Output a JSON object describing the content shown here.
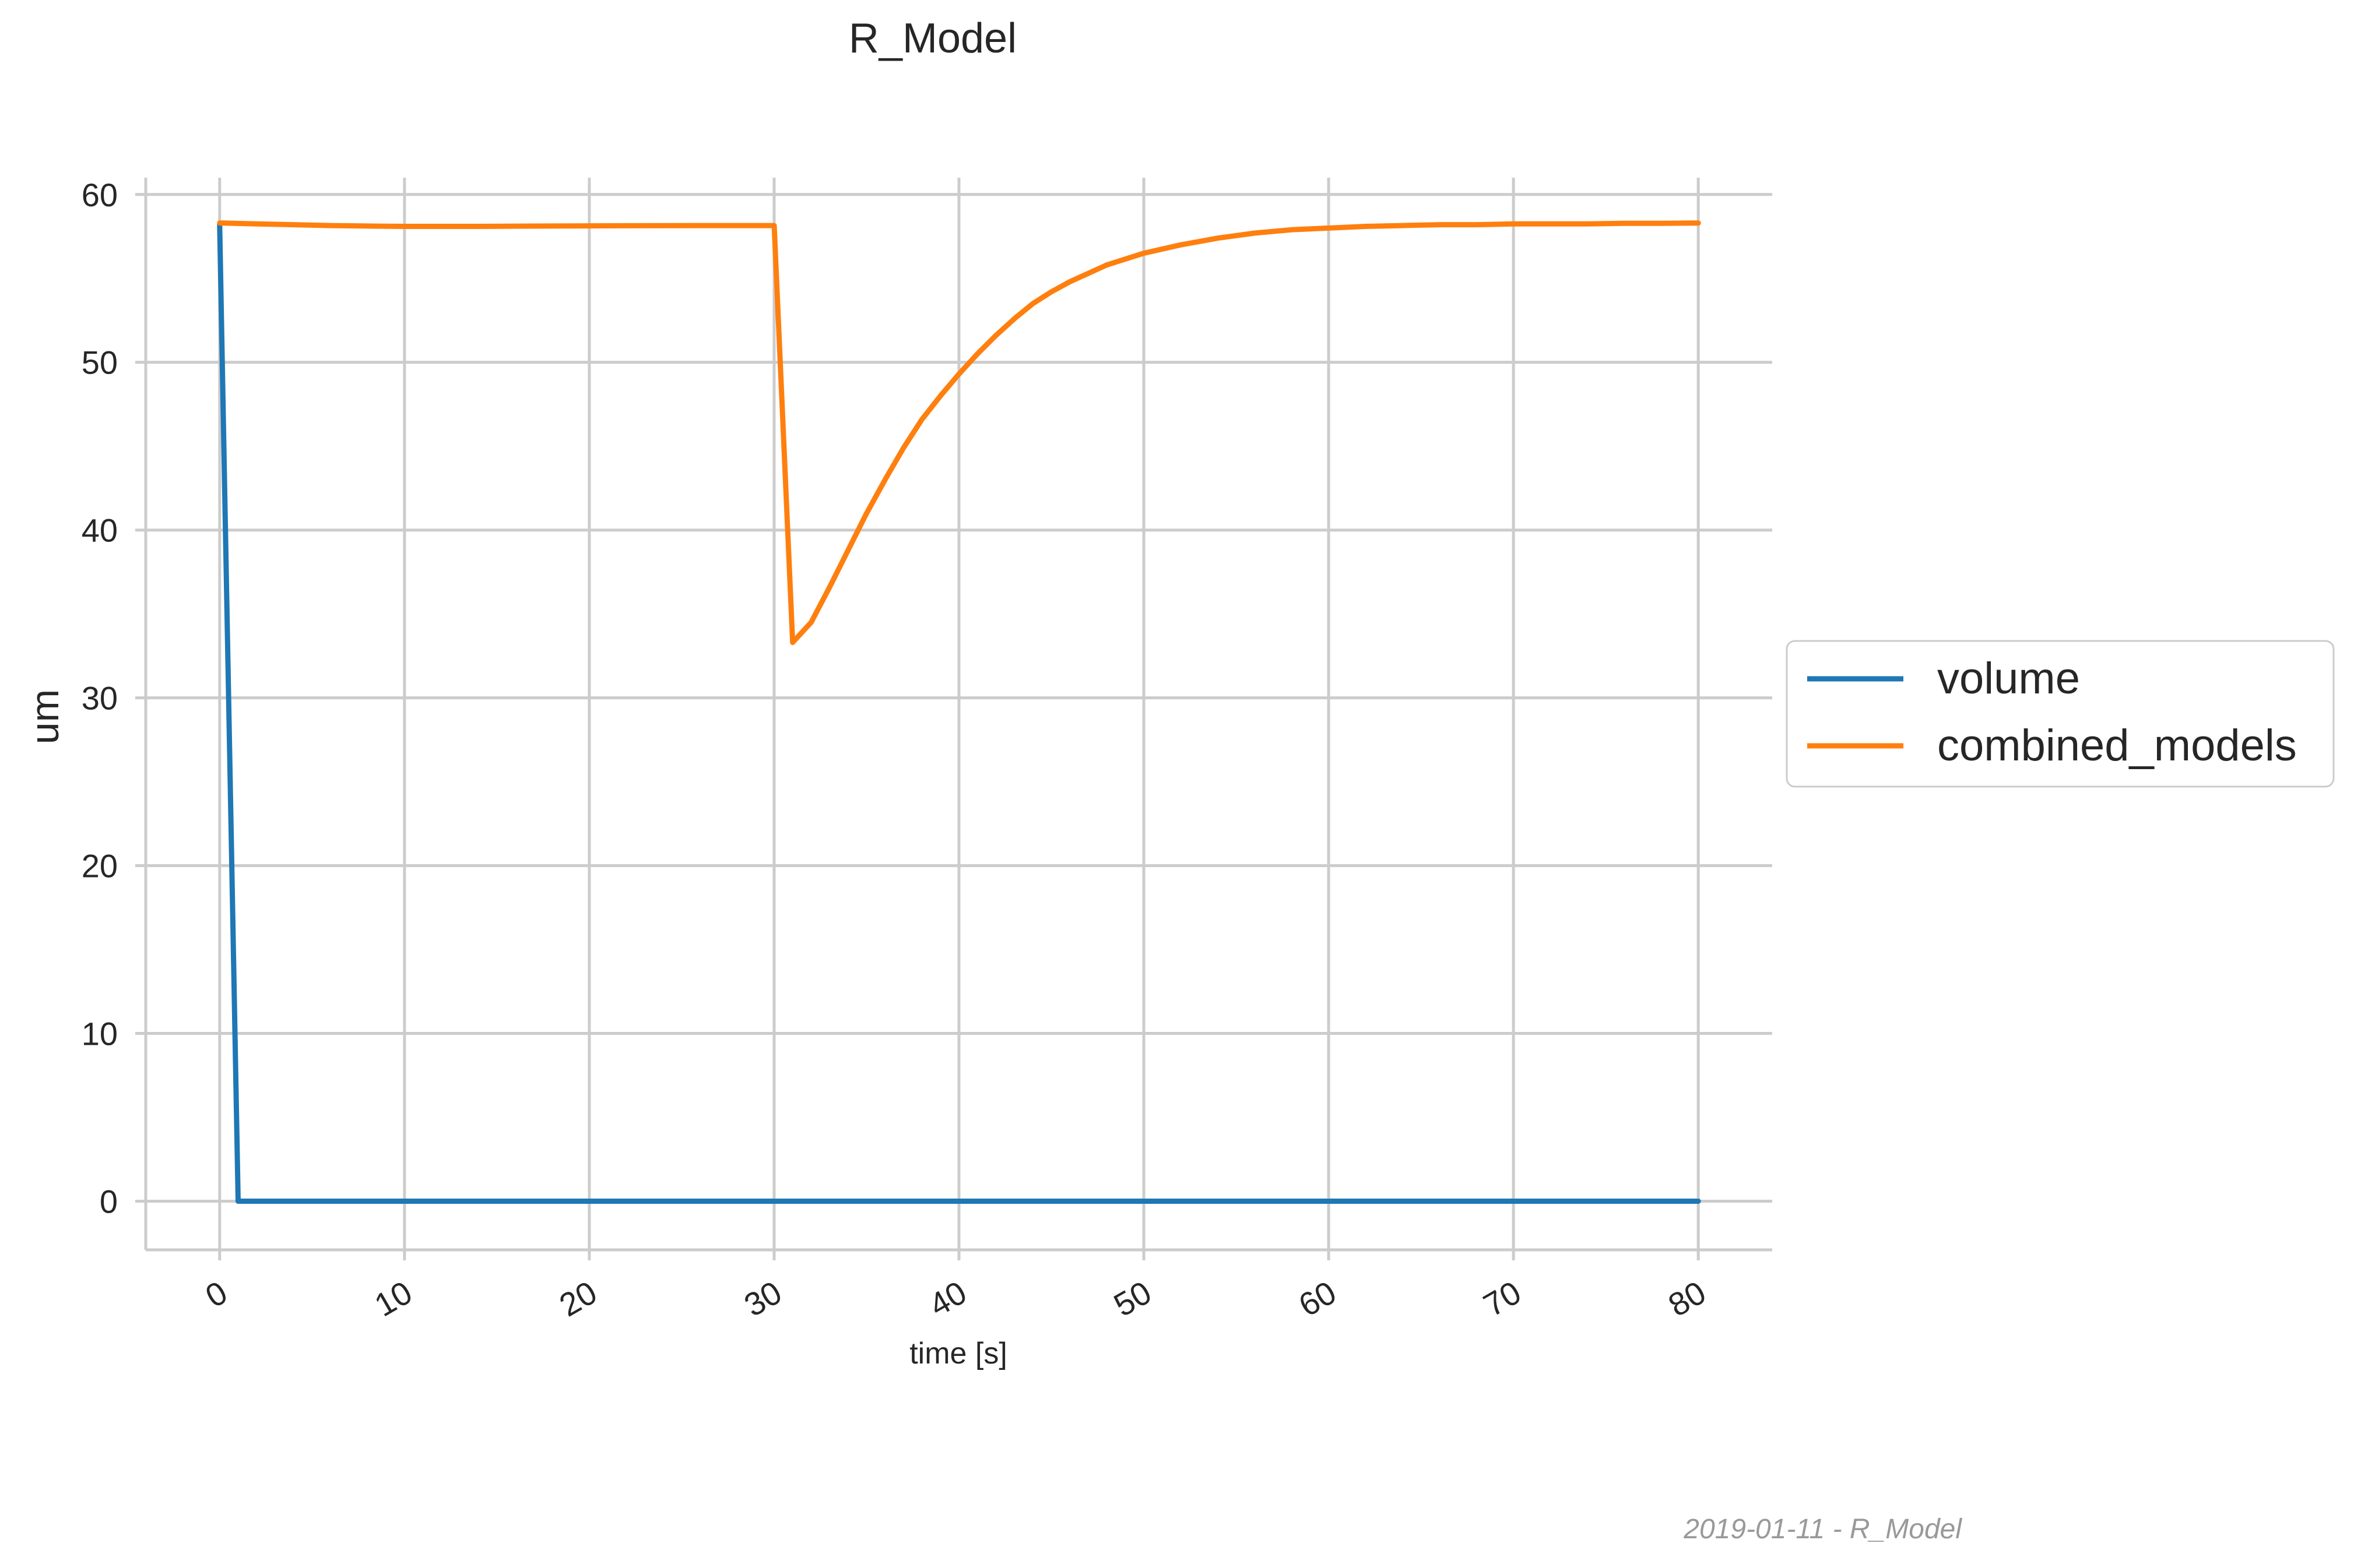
{
  "chart_data": {
    "type": "line",
    "title": "R_Model",
    "xlabel": "time [s]",
    "ylabel": "um",
    "xlim": [
      -4,
      84
    ],
    "ylim": [
      -2.9,
      61
    ],
    "x_ticks": [
      0,
      10,
      20,
      30,
      40,
      50,
      60,
      70,
      80
    ],
    "y_ticks": [
      0,
      10,
      20,
      30,
      40,
      50,
      60
    ],
    "grid": true,
    "legend_position": "center-right outside",
    "footer": "2019-01-11 - R_Model",
    "series": [
      {
        "name": "volume",
        "color": "#1f77b4",
        "x": [
          0,
          1,
          10,
          20,
          30,
          40,
          50,
          60,
          70,
          80
        ],
        "y": [
          58.2,
          0,
          0,
          0,
          0,
          0,
          0,
          0,
          0,
          0
        ]
      },
      {
        "name": "combined_models",
        "color": "#ff7f0e",
        "x": [
          0,
          2,
          4,
          6,
          8,
          10,
          14,
          18,
          22,
          26,
          30,
          31,
          32,
          33,
          34,
          35,
          36,
          37,
          38,
          39,
          40,
          41,
          42,
          43,
          44,
          45,
          46,
          47,
          48,
          50,
          52,
          54,
          56,
          58,
          60,
          62,
          64,
          66,
          68,
          70,
          72,
          74,
          76,
          78,
          80
        ],
        "y": [
          58.3,
          58.25,
          58.2,
          58.15,
          58.12,
          58.1,
          58.1,
          58.12,
          58.14,
          58.15,
          58.15,
          33.3,
          34.5,
          36.6,
          38.8,
          41.0,
          43.0,
          44.9,
          46.6,
          48.0,
          49.3,
          50.5,
          51.6,
          52.6,
          53.5,
          54.2,
          54.8,
          55.3,
          55.8,
          56.5,
          57.0,
          57.4,
          57.7,
          57.9,
          58.0,
          58.1,
          58.15,
          58.2,
          58.2,
          58.25,
          58.25,
          58.25,
          58.28,
          58.28,
          58.3
        ]
      }
    ]
  }
}
